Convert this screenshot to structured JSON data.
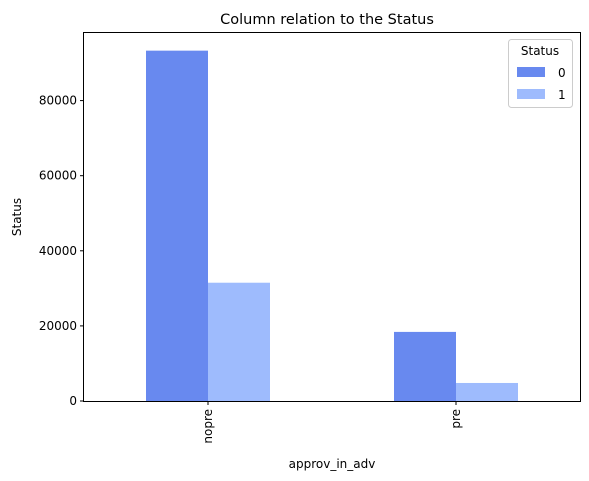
{
  "chart_data": {
    "type": "bar",
    "title": "Column relation to the Status",
    "xlabel": "approv_in_adv",
    "ylabel": "Status",
    "categories": [
      "nopre",
      "pre"
    ],
    "series": [
      {
        "name": "0",
        "values": [
          93300,
          18400
        ],
        "color": "#6889ef"
      },
      {
        "name": "1",
        "values": [
          31500,
          4800
        ],
        "color": "#9ebbfd"
      }
    ],
    "ylim": [
      0,
      98000
    ],
    "yticks": [
      0,
      20000,
      40000,
      60000,
      80000
    ],
    "legend": {
      "title": "Status",
      "position": "top-right"
    },
    "grid": false
  }
}
